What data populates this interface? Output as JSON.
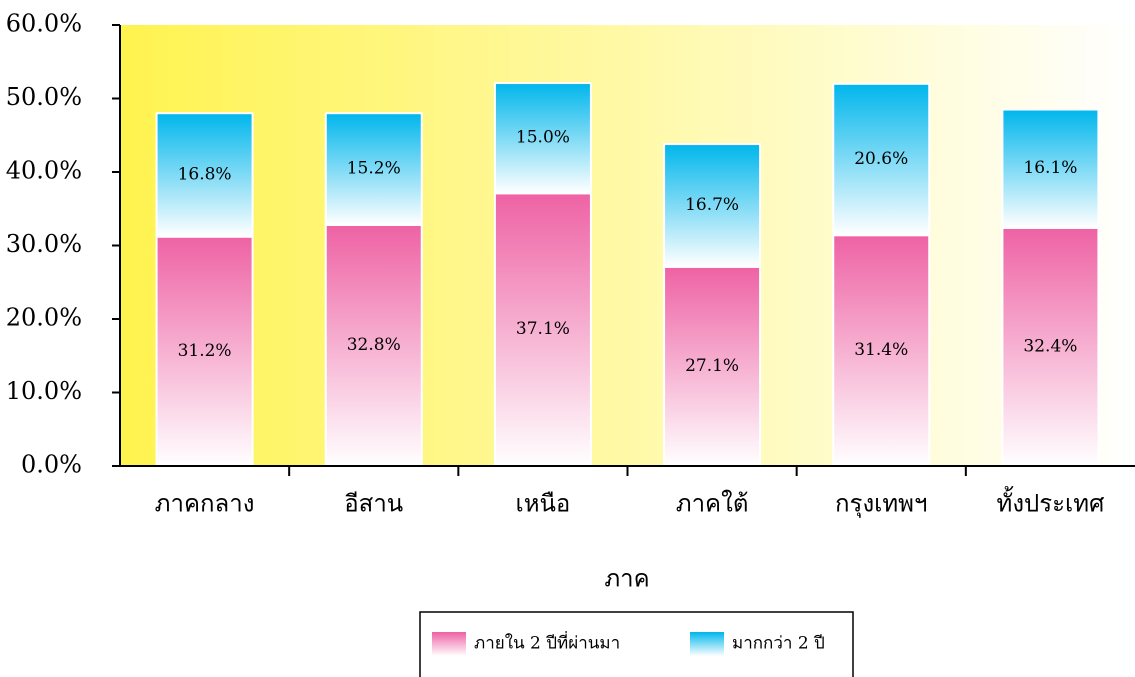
{
  "chart_data": {
    "type": "stacked_bar",
    "x_label": "ภาค",
    "categories": [
      "ภาคกลาง",
      "อีสาน",
      "เหนือ",
      "ภาคใต้",
      "กรุงเทพฯ",
      "ทั้งประเทศ"
    ],
    "series": [
      {
        "name": "ภายใน 2 ปีที่ผ่านมา",
        "color": "#ee62a4",
        "values": [
          31.2,
          32.8,
          37.1,
          27.1,
          31.4,
          32.4
        ],
        "value_labels": [
          "31.2%",
          "32.8%",
          "37.1%",
          "27.1%",
          "31.4%",
          "32.4%"
        ]
      },
      {
        "name": "มากกว่า 2 ปี",
        "color": "#00b6ec",
        "values": [
          16.8,
          15.2,
          15.0,
          16.7,
          20.6,
          16.1
        ],
        "value_labels": [
          "16.8%",
          "15.2%",
          "15.0%",
          "16.7%",
          "20.6%",
          "16.1%"
        ]
      }
    ],
    "ylim": [
      0,
      60
    ],
    "yticks": [
      {
        "value": 0,
        "label": "0.0%"
      },
      {
        "value": 10,
        "label": "10.0%"
      },
      {
        "value": 20,
        "label": "20.0%"
      },
      {
        "value": 30,
        "label": "30.0%"
      },
      {
        "value": 40,
        "label": "40.0%"
      },
      {
        "value": 50,
        "label": "50.0%"
      },
      {
        "value": 60,
        "label": "60.0%"
      }
    ],
    "legend": "bottom"
  }
}
